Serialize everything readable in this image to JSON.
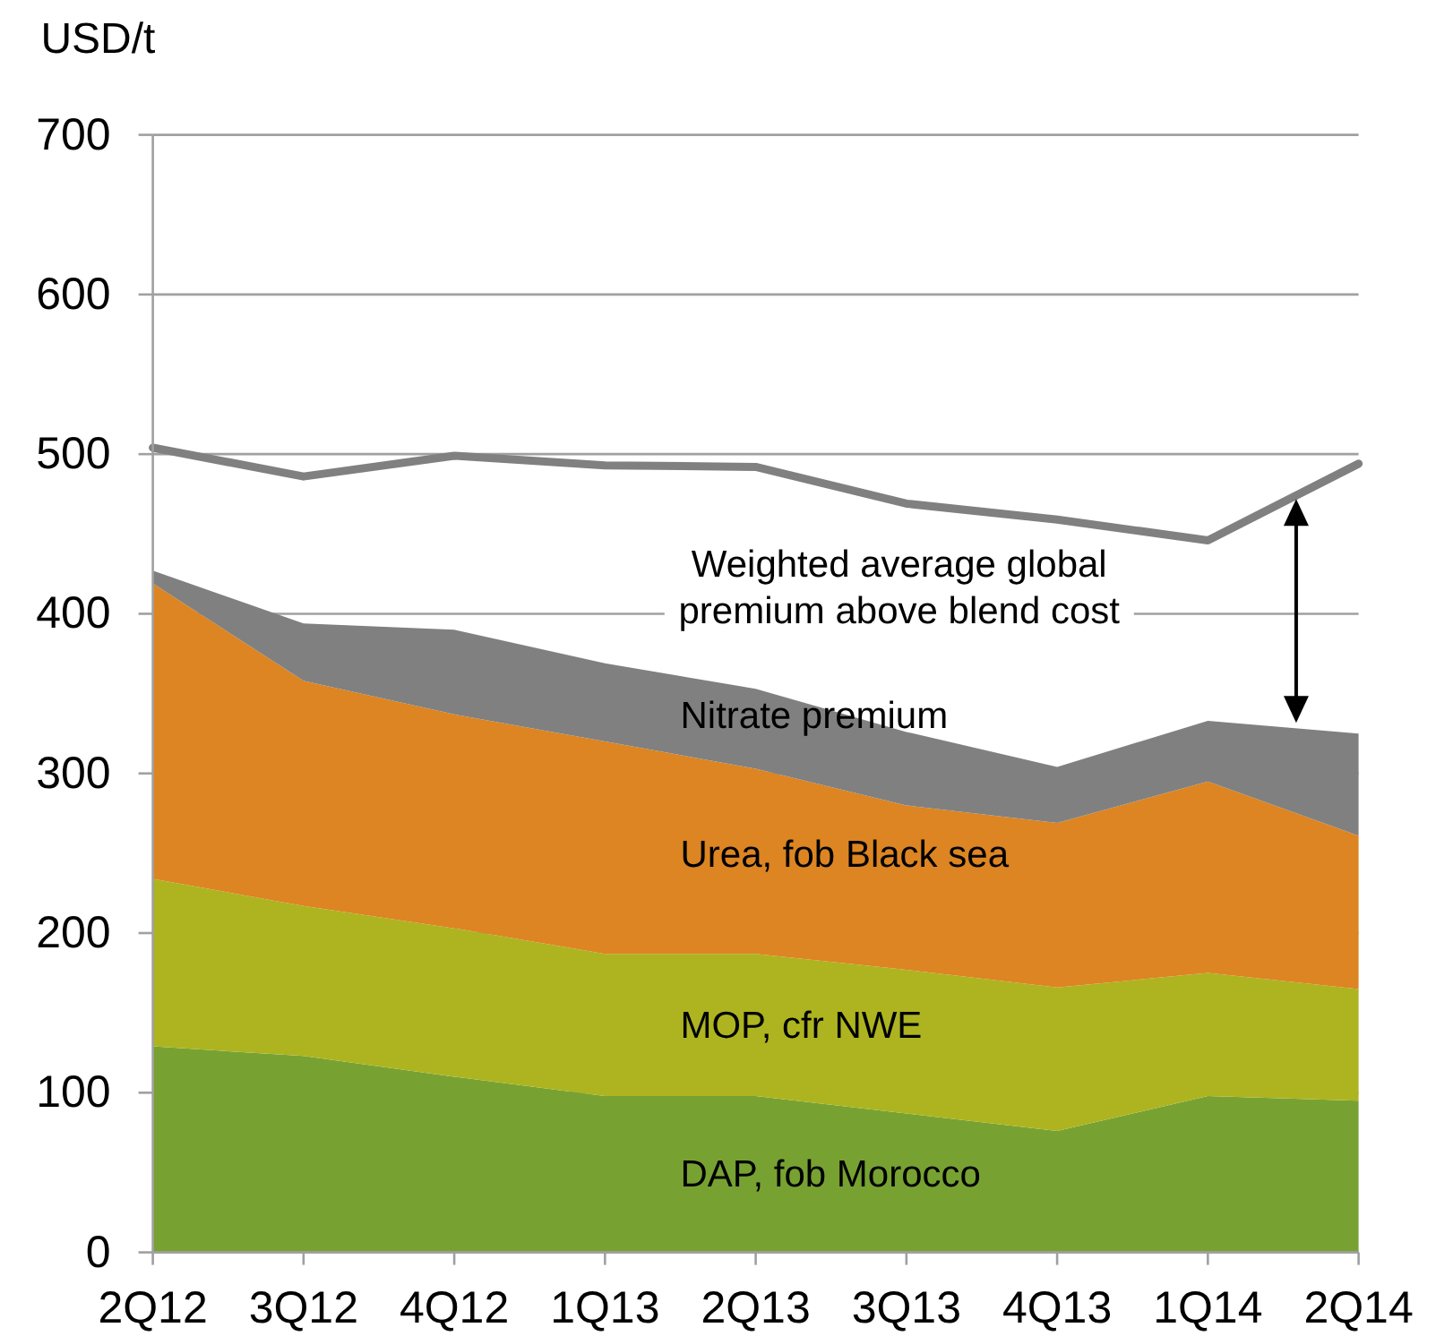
{
  "chart_data": {
    "type": "area",
    "stacked": true,
    "ylabel": "USD/t",
    "categories": [
      "2Q12",
      "3Q12",
      "4Q12",
      "1Q13",
      "2Q13",
      "3Q13",
      "4Q13",
      "1Q14",
      "2Q14"
    ],
    "series": [
      {
        "name": "DAP, fob Morocco",
        "color": "#77a232",
        "values": [
          129,
          123,
          110,
          98,
          98,
          87,
          76,
          98,
          95
        ]
      },
      {
        "name": "MOP, cfr NWE",
        "color": "#adb420",
        "values": [
          105,
          94,
          93,
          89,
          89,
          90,
          90,
          77,
          70
        ]
      },
      {
        "name": "Urea, fob Black sea",
        "color": "#dc8522",
        "values": [
          185,
          141,
          134,
          133,
          116,
          103,
          103,
          120,
          96
        ]
      },
      {
        "name": "Nitrate premium",
        "color": "#808080",
        "values": [
          8,
          36,
          53,
          49,
          50,
          46,
          35,
          38,
          64
        ]
      },
      {
        "type": "line",
        "color": "#808080",
        "values": [
          504,
          486,
          499,
          493,
          492,
          469,
          459,
          446,
          494
        ]
      }
    ],
    "ylim": [
      0,
      700
    ],
    "yticks": [
      0,
      100,
      200,
      300,
      400,
      500,
      600,
      700
    ],
    "grid": "y",
    "annotations": [
      "Weighted average global premium above blend cost"
    ]
  }
}
